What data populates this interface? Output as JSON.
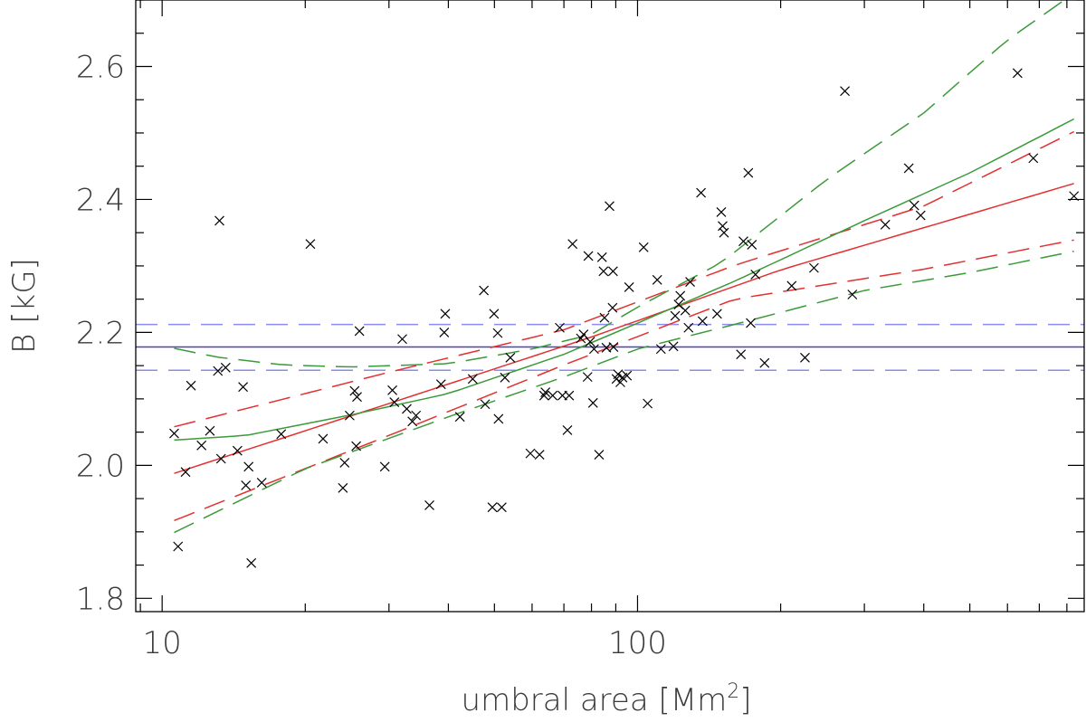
{
  "chart_data": {
    "type": "scatter",
    "xlabel": "umbral area [Mm",
    "xlabel_sup": "2",
    "xlabel_end": "]",
    "ylabel": "B [kG]",
    "xscale": "log",
    "xlim": [
      8.8,
      870
    ],
    "ylim": [
      1.78,
      2.7
    ],
    "x_major_ticks": [
      10,
      100
    ],
    "x_tick_labels": [
      "10",
      "100"
    ],
    "y_major_ticks": [
      1.8,
      2.0,
      2.2,
      2.4,
      2.6
    ],
    "y_tick_labels": [
      "1.8",
      "2.0",
      "2.2",
      "2.4",
      "2.6"
    ],
    "grid": false,
    "legend": "none",
    "marker": "x",
    "points": [
      [
        10.6,
        2.048
      ],
      [
        10.8,
        1.878
      ],
      [
        11.2,
        1.99
      ],
      [
        11.5,
        2.12
      ],
      [
        12.1,
        2.03
      ],
      [
        12.6,
        2.052
      ],
      [
        13.1,
        2.142
      ],
      [
        13.2,
        2.368
      ],
      [
        13.3,
        2.01
      ],
      [
        13.6,
        2.147
      ],
      [
        14.4,
        2.022
      ],
      [
        14.8,
        2.118
      ],
      [
        15.0,
        1.97
      ],
      [
        15.2,
        1.998
      ],
      [
        15.4,
        1.853
      ],
      [
        16.2,
        1.974
      ],
      [
        17.8,
        2.047
      ],
      [
        20.5,
        2.333
      ],
      [
        21.8,
        2.04
      ],
      [
        24.0,
        1.966
      ],
      [
        24.2,
        2.004
      ],
      [
        24.8,
        2.075
      ],
      [
        25.4,
        2.112
      ],
      [
        25.6,
        2.029
      ],
      [
        25.7,
        2.103
      ],
      [
        26.0,
        2.202
      ],
      [
        29.4,
        1.998
      ],
      [
        30.5,
        2.113
      ],
      [
        30.8,
        2.095
      ],
      [
        32.0,
        2.19
      ],
      [
        32.7,
        2.085
      ],
      [
        33.6,
        2.066
      ],
      [
        34.2,
        2.075
      ],
      [
        36.5,
        1.94
      ],
      [
        38.6,
        2.122
      ],
      [
        39.2,
        2.2
      ],
      [
        39.4,
        2.228
      ],
      [
        42.3,
        2.073
      ],
      [
        45.0,
        2.13
      ],
      [
        47.5,
        2.263
      ],
      [
        47.8,
        2.092
      ],
      [
        49.5,
        1.937
      ],
      [
        49.9,
        2.228
      ],
      [
        50.8,
        2.199
      ],
      [
        51.0,
        2.07
      ],
      [
        51.8,
        1.937
      ],
      [
        52.6,
        2.132
      ],
      [
        54.0,
        2.162
      ],
      [
        59.5,
        2.018
      ],
      [
        62.2,
        2.016
      ],
      [
        63.6,
        2.105
      ],
      [
        64.0,
        2.11
      ],
      [
        66.3,
        2.105
      ],
      [
        68.6,
        2.207
      ],
      [
        69.5,
        2.105
      ],
      [
        71.2,
        2.053
      ],
      [
        71.8,
        2.105
      ],
      [
        73.0,
        2.333
      ],
      [
        76.0,
        2.191
      ],
      [
        77.0,
        2.197
      ],
      [
        78.5,
        2.133
      ],
      [
        78.8,
        2.315
      ],
      [
        79.5,
        2.186
      ],
      [
        80.6,
        2.094
      ],
      [
        81.0,
        2.175
      ],
      [
        83.0,
        2.016
      ],
      [
        84.2,
        2.313
      ],
      [
        84.8,
        2.292
      ],
      [
        85.2,
        2.222
      ],
      [
        86.0,
        2.177
      ],
      [
        87.3,
        2.39
      ],
      [
        88.6,
        2.237
      ],
      [
        88.8,
        2.292
      ],
      [
        89.0,
        2.178
      ],
      [
        90.3,
        2.13
      ],
      [
        91.0,
        2.137
      ],
      [
        92.0,
        2.125
      ],
      [
        93.0,
        2.132
      ],
      [
        95.0,
        2.135
      ],
      [
        96.0,
        2.268
      ],
      [
        103.0,
        2.328
      ],
      [
        105.0,
        2.093
      ],
      [
        110.0,
        2.279
      ],
      [
        112.0,
        2.175
      ],
      [
        119.0,
        2.179
      ],
      [
        120.0,
        2.225
      ],
      [
        122.0,
        2.242
      ],
      [
        123.0,
        2.255
      ],
      [
        126.0,
        2.233
      ],
      [
        128.0,
        2.207
      ],
      [
        129.0,
        2.276
      ],
      [
        136.0,
        2.41
      ],
      [
        137.0,
        2.217
      ],
      [
        147.0,
        2.228
      ],
      [
        150.0,
        2.381
      ],
      [
        151.0,
        2.36
      ],
      [
        152.0,
        2.35
      ],
      [
        165.0,
        2.167
      ],
      [
        167.0,
        2.337
      ],
      [
        171.0,
        2.44
      ],
      [
        173.0,
        2.214
      ],
      [
        174.0,
        2.332
      ],
      [
        177.0,
        2.287
      ],
      [
        185.0,
        2.154
      ],
      [
        211.0,
        2.27
      ],
      [
        225.0,
        2.162
      ],
      [
        235.0,
        2.297
      ],
      [
        273.0,
        2.563
      ],
      [
        283.0,
        2.257
      ],
      [
        332.0,
        2.362
      ],
      [
        372.0,
        2.447
      ],
      [
        382.0,
        2.391
      ],
      [
        394.0,
        2.376
      ],
      [
        630.0,
        2.59
      ],
      [
        680.0,
        2.462
      ],
      [
        828.0,
        2.405
      ]
    ],
    "series": [
      {
        "type": "constant",
        "value": 2.178,
        "color": "#4a3fc8",
        "dash": "solid"
      },
      {
        "type": "constant",
        "value": 2.212,
        "color": "#8a8cf0",
        "dash": "dashed"
      },
      {
        "type": "constant",
        "value": 2.143,
        "color": "#8a8cf0",
        "dash": "dashed"
      },
      {
        "type": "curve",
        "color": "#e33030",
        "dash": "solid",
        "points": [
          [
            10.6,
            1.988
          ],
          [
            30,
            2.093
          ],
          [
            80,
            2.193
          ],
          [
            200,
            2.294
          ],
          [
            828,
            2.424
          ]
        ]
      },
      {
        "type": "curve",
        "color": "#e33030",
        "dash": "dashed",
        "points": [
          [
            10.6,
            2.058
          ],
          [
            30,
            2.14
          ],
          [
            70,
            2.204
          ],
          [
            160,
            2.301
          ],
          [
            400,
            2.39
          ],
          [
            828,
            2.502
          ]
        ]
      },
      {
        "type": "curve",
        "color": "#e33030",
        "dash": "dashed",
        "points": [
          [
            10.6,
            1.917
          ],
          [
            30,
            2.045
          ],
          [
            70,
            2.151
          ],
          [
            160,
            2.25
          ],
          [
            400,
            2.295
          ],
          [
            828,
            2.339
          ]
        ]
      },
      {
        "type": "curve",
        "color": "#3a9a3a",
        "dash": "solid",
        "points": [
          [
            10.6,
            2.038
          ],
          [
            15,
            2.045
          ],
          [
            25,
            2.076
          ],
          [
            40,
            2.108
          ],
          [
            70,
            2.167
          ],
          [
            100,
            2.214
          ],
          [
            160,
            2.277
          ],
          [
            300,
            2.368
          ],
          [
            500,
            2.44
          ],
          [
            828,
            2.521
          ]
        ]
      },
      {
        "type": "curve",
        "color": "#3a9a3a",
        "dash": "dashed",
        "points": [
          [
            10.6,
            2.176
          ],
          [
            13,
            2.163
          ],
          [
            18,
            2.151
          ],
          [
            25,
            2.148
          ],
          [
            40,
            2.153
          ],
          [
            60,
            2.175
          ],
          [
            80,
            2.197
          ],
          [
            100,
            2.238
          ],
          [
            150,
            2.305
          ],
          [
            250,
            2.43
          ],
          [
            400,
            2.53
          ],
          [
            600,
            2.64
          ],
          [
            828,
            2.71
          ]
        ]
      },
      {
        "type": "curve",
        "color": "#3a9a3a",
        "dash": "dashed",
        "points": [
          [
            10.6,
            1.899
          ],
          [
            20,
            1.995
          ],
          [
            40,
            2.073
          ],
          [
            70,
            2.133
          ],
          [
            100,
            2.175
          ],
          [
            160,
            2.212
          ],
          [
            300,
            2.263
          ],
          [
            500,
            2.29
          ],
          [
            828,
            2.322
          ]
        ]
      }
    ]
  }
}
